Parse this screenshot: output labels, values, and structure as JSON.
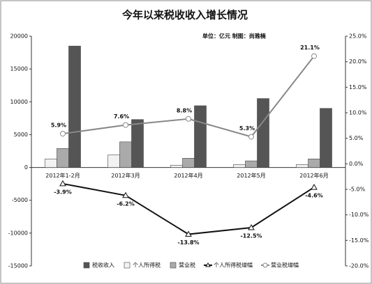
{
  "chart_data": {
    "type": "bar-line",
    "title": "今年以来税收收入增长情况",
    "subtitle": "单位：亿元    制图：尚雅楠",
    "categories": [
      "2012年1-2月",
      "2012年3月",
      "2012年4月",
      "2012年5月",
      "2012年6月"
    ],
    "series": [
      {
        "name": "税收收入",
        "type": "bar",
        "color": "#555555",
        "values": [
          18500,
          7300,
          9400,
          10500,
          9000
        ]
      },
      {
        "name": "个人所得税",
        "type": "bar",
        "color": "#f2f2f2",
        "values": [
          1300,
          1900,
          350,
          450,
          450
        ]
      },
      {
        "name": "营业税",
        "type": "bar",
        "color": "#aaaaaa",
        "values": [
          2900,
          3900,
          1400,
          1000,
          1300
        ]
      },
      {
        "name": "个人所得税增幅",
        "type": "line",
        "axis": "y2",
        "color": "#111111",
        "marker": "triangle",
        "values": [
          -3.9,
          -6.2,
          -13.8,
          -12.5,
          -4.6
        ],
        "value_labels": [
          "-3.9%",
          "-6.2%",
          "-13.8%",
          "-12.5%",
          "-4.6%"
        ]
      },
      {
        "name": "营业税增幅",
        "type": "line",
        "axis": "y2",
        "color": "#888888",
        "marker": "circle",
        "values": [
          5.9,
          7.6,
          8.8,
          5.3,
          21.1
        ],
        "value_labels": [
          "5.9%",
          "7.6%",
          "8.8%",
          "5.3%",
          "21.1%"
        ]
      }
    ],
    "ylim": [
      -15000,
      20000
    ],
    "yticks": [
      -15000,
      -10000,
      -5000,
      0,
      5000,
      10000,
      15000,
      20000
    ],
    "y2lim": [
      -20,
      25
    ],
    "y2ticks": [
      {
        "value": -20,
        "label": "-20.0%"
      },
      {
        "value": -15,
        "label": "-15.0%"
      },
      {
        "value": -10,
        "label": "-10.0%"
      },
      {
        "value": -5,
        "label": "-5.0%"
      },
      {
        "value": 0,
        "label": "0.0%"
      },
      {
        "value": 5,
        "label": "5.0%"
      },
      {
        "value": 10,
        "label": "10.0%"
      },
      {
        "value": 15,
        "label": "15.0%"
      },
      {
        "value": 20,
        "label": "20.0%"
      },
      {
        "value": 25,
        "label": "25.0%"
      }
    ]
  }
}
